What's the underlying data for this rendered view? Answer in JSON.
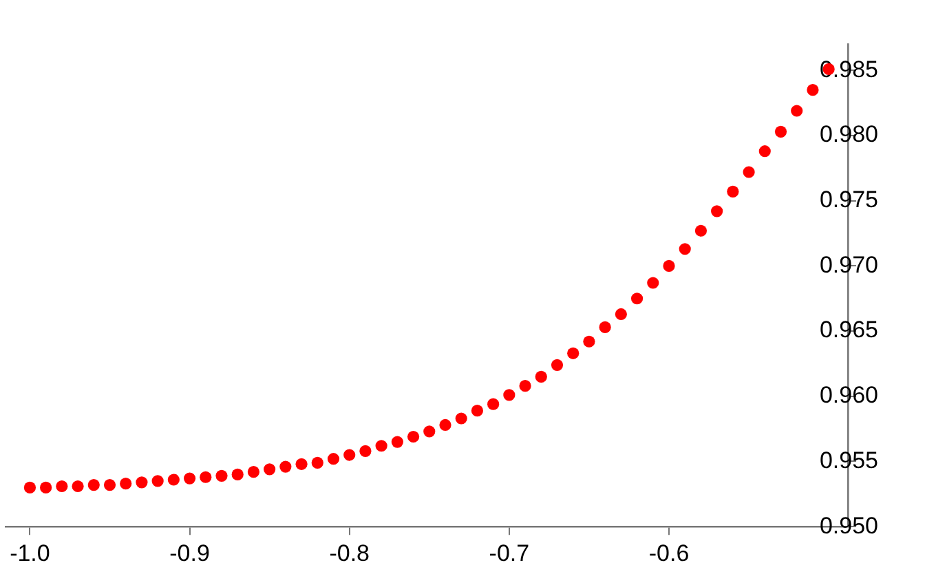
{
  "chart_data": {
    "type": "scatter",
    "x": [
      -1.0,
      -0.99,
      -0.98,
      -0.97,
      -0.96,
      -0.95,
      -0.94,
      -0.93,
      -0.92,
      -0.91,
      -0.9,
      -0.89,
      -0.88,
      -0.87,
      -0.86,
      -0.85,
      -0.84,
      -0.83,
      -0.82,
      -0.81,
      -0.8,
      -0.79,
      -0.78,
      -0.77,
      -0.76,
      -0.75,
      -0.74,
      -0.73,
      -0.72,
      -0.71,
      -0.7,
      -0.69,
      -0.68,
      -0.67,
      -0.66,
      -0.65,
      -0.64,
      -0.63,
      -0.62,
      -0.61,
      -0.6,
      -0.59,
      -0.58,
      -0.57,
      -0.56,
      -0.55,
      -0.54,
      -0.53,
      -0.52,
      -0.51,
      -0.5
    ],
    "series": [
      {
        "color": "#ff0000",
        "values": [
          0.953,
          0.953,
          0.9531,
          0.9531,
          0.9532,
          0.9532,
          0.9533,
          0.9534,
          0.9535,
          0.9536,
          0.9537,
          0.9538,
          0.9539,
          0.954,
          0.9542,
          0.9544,
          0.9546,
          0.9548,
          0.9549,
          0.9552,
          0.9555,
          0.9558,
          0.9562,
          0.9565,
          0.9569,
          0.9573,
          0.9578,
          0.9583,
          0.9589,
          0.9594,
          0.9601,
          0.9608,
          0.9615,
          0.9624,
          0.9633,
          0.9642,
          0.9653,
          0.9663,
          0.9675,
          0.9687,
          0.97,
          0.9713,
          0.9727,
          0.9742,
          0.9757,
          0.9772,
          0.9788,
          0.9803,
          0.9819,
          0.9835,
          0.9851
        ]
      }
    ],
    "xlim": [
      -1.015,
      -0.488
    ],
    "ylim": [
      0.95,
      0.987
    ],
    "xticks": [
      {
        "value": -1.0,
        "label": "-1.0"
      },
      {
        "value": -0.9,
        "label": "-0.9"
      },
      {
        "value": -0.8,
        "label": "-0.8"
      },
      {
        "value": -0.7,
        "label": "-0.7"
      },
      {
        "value": -0.6,
        "label": "-0.6"
      }
    ],
    "yticks": [
      {
        "value": 0.95,
        "label": "0.950"
      },
      {
        "value": 0.955,
        "label": "0.955"
      },
      {
        "value": 0.96,
        "label": "0.960"
      },
      {
        "value": 0.965,
        "label": "0.965"
      },
      {
        "value": 0.97,
        "label": "0.970"
      },
      {
        "value": 0.975,
        "label": "0.975"
      },
      {
        "value": 0.98,
        "label": "0.980"
      },
      {
        "value": 0.985,
        "label": "0.985"
      }
    ],
    "grid": false,
    "legend": false,
    "marker": "circle"
  }
}
